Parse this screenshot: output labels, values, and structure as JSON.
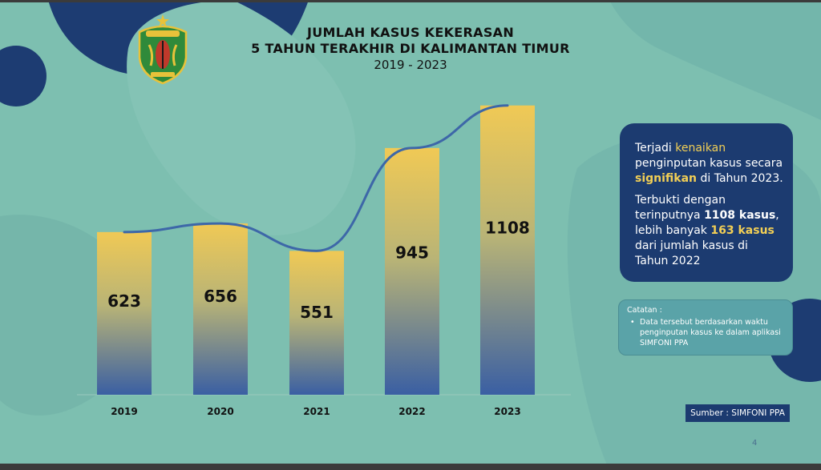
{
  "title": {
    "line1": "JUMLAH KASUS KEKERASAN",
    "line2": "5 TAHUN TERAKHIR DI KALIMANTAN TIMUR",
    "line3": "2019 - 2023"
  },
  "info": {
    "p1_a": "Terjadi ",
    "p1_hl1": "kenaikan",
    "p1_b": " penginputan kasus secara ",
    "p1_hl2": "signifikan",
    "p1_c": " di Tahun 2023.",
    "p2_a": "Terbukti dengan terinputnya ",
    "p2_bold": "1108 kasus",
    "p2_b": ", lebih banyak ",
    "p2_hl": "163 kasus",
    "p2_c": " dari jumlah kasus di Tahun 2022"
  },
  "note": {
    "title": "Catatan :",
    "item": "Data tersebut berdasarkan waktu penginputan kasus ke dalam aplikasi SIMFONI PPA"
  },
  "source": "Sumber : SIMFONI PPA",
  "page_number": "4",
  "colors": {
    "bar_top": "#f0c955",
    "bar_bottom": "#3a5fa3",
    "line": "#3d67a8",
    "panel": "#1c3b70",
    "highlight": "#f2cf55"
  },
  "chart_data": {
    "type": "bar",
    "categories": [
      "2019",
      "2020",
      "2021",
      "2022",
      "2023"
    ],
    "values": [
      623,
      656,
      551,
      945,
      1108
    ],
    "trend_line": true,
    "ylim": [
      0,
      1150
    ],
    "grid": false,
    "legend": "none"
  }
}
